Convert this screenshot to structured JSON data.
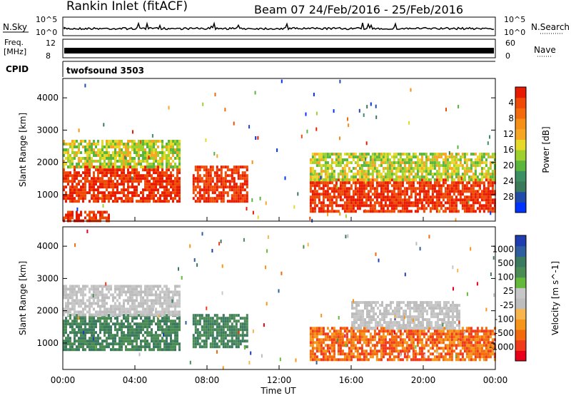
{
  "header": {
    "station": "Rankin Inlet (fitACF)",
    "beam_date": "Beam 07  24/Feb/2016 - 25/Feb/2016"
  },
  "top_panels": {
    "nsky_label": "N.Sky",
    "nsearch_label": "N.Search",
    "nsky_ticks": [
      "10^5",
      "10^0"
    ],
    "nsearch_ticks": [
      "10^5",
      "10^0"
    ],
    "freq_label_1": "Freq.",
    "freq_label_2": "[MHz]",
    "freq_ticks": [
      "12",
      "8"
    ],
    "nave_label": "Nave",
    "nave_ticks": [
      "60",
      "0"
    ],
    "cpid_label": "CPID",
    "cpid_value": "twofsound 3503"
  },
  "colors": {
    "power_scale": [
      "#0033ff",
      "#224aa8",
      "#3a7a5a",
      "#3b8f63",
      "#5ab53c",
      "#9ed12d",
      "#e6d92a",
      "#f6a623",
      "#f58f16",
      "#f26a0c",
      "#ef4a06",
      "#e81b00"
    ],
    "velocity_scale": [
      "#e8001a",
      "#f03a1a",
      "#f26a0c",
      "#f5951a",
      "#f7b54c",
      "#bdbdbd",
      "#c7c7c7",
      "#64b93a",
      "#4a8c53",
      "#3c7a5f",
      "#2e5ea0",
      "#1f3cb0"
    ]
  },
  "chart_data": [
    {
      "type": "heatmap",
      "panel": "power",
      "ylabel": "Slant Range [km]",
      "ylim": [
        180,
        4600
      ],
      "y_ticks": [
        1000,
        2000,
        3000,
        4000
      ],
      "xlim_hours": [
        0,
        24
      ],
      "x_tick_labels": [
        "00:00",
        "04:00",
        "08:00",
        "12:00",
        "16:00",
        "20:00",
        "00:00"
      ],
      "colorbar_label": "Power [dB]",
      "colorbar_ticks": [
        "4",
        "8",
        "12",
        "16",
        "20",
        "24",
        "28"
      ],
      "echo_regions": [
        {
          "t": [
            0.0,
            6.5
          ],
          "r": [
            800,
            1900
          ],
          "value": "strong"
        },
        {
          "t": [
            0.0,
            6.5
          ],
          "r": [
            1900,
            2700
          ],
          "value": "moderate"
        },
        {
          "t": [
            7.2,
            10.2
          ],
          "r": [
            800,
            1900
          ],
          "value": "strong"
        },
        {
          "t": [
            13.7,
            24.0
          ],
          "r": [
            500,
            1500
          ],
          "value": "strong"
        },
        {
          "t": [
            13.7,
            24.0
          ],
          "r": [
            1500,
            2300
          ],
          "value": "moderate"
        },
        {
          "t": [
            0.0,
            2.5
          ],
          "r": [
            180,
            500
          ],
          "value": "strong"
        }
      ]
    },
    {
      "type": "heatmap",
      "panel": "velocity",
      "ylabel": "Slant Range [km]",
      "xlabel": "Time UT",
      "ylim": [
        180,
        4600
      ],
      "y_ticks": [
        1000,
        2000,
        3000,
        4000
      ],
      "xlim_hours": [
        0,
        24
      ],
      "x_tick_labels": [
        "00:00",
        "04:00",
        "08:00",
        "12:00",
        "16:00",
        "20:00",
        "00:00"
      ],
      "colorbar_label": "Velocity [m s^-1]",
      "colorbar_ticks": [
        "1000",
        "500",
        "100",
        "25",
        "-25",
        "-100",
        "-500",
        "-1000"
      ],
      "echo_regions": [
        {
          "t": [
            0.0,
            6.5
          ],
          "r": [
            800,
            1900
          ],
          "value": "positive"
        },
        {
          "t": [
            0.0,
            6.5
          ],
          "r": [
            1900,
            2800
          ],
          "value": "near-zero"
        },
        {
          "t": [
            7.2,
            10.2
          ],
          "r": [
            900,
            1900
          ],
          "value": "positive"
        },
        {
          "t": [
            13.7,
            24.0
          ],
          "r": [
            500,
            1500
          ],
          "value": "negative"
        },
        {
          "t": [
            16.0,
            22.0
          ],
          "r": [
            1500,
            2300
          ],
          "value": "near-zero"
        }
      ]
    }
  ]
}
